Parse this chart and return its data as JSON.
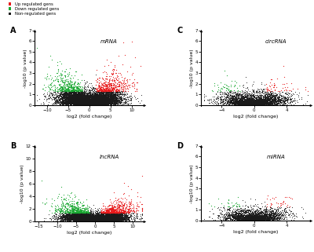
{
  "panels": [
    {
      "label": "A",
      "title": "mRNA",
      "xlim": [
        -13,
        13
      ],
      "ylim": [
        -0.1,
        7
      ],
      "xticks": [
        -10,
        -5,
        0,
        5,
        10
      ],
      "yticks": [
        0,
        1,
        2,
        3,
        4,
        5,
        6,
        7
      ],
      "n_total": 12000,
      "x_std": 3.5,
      "x_thresh": 1.5,
      "y_thresh": 1.3,
      "y_max": 7.0,
      "seed": 42
    },
    {
      "label": "C",
      "title": "circRNA",
      "xlim": [
        -6.5,
        7
      ],
      "ylim": [
        -0.1,
        7
      ],
      "xticks": [
        -4,
        0,
        4
      ],
      "yticks": [
        0,
        1,
        2,
        3,
        4,
        5,
        6,
        7
      ],
      "n_total": 4000,
      "x_std": 2.0,
      "x_thresh": 1.5,
      "y_thresh": 1.3,
      "y_max": 7.0,
      "seed": 43
    },
    {
      "label": "B",
      "title": "lncRNA",
      "xlim": [
        -16,
        13
      ],
      "ylim": [
        -0.1,
        12
      ],
      "xticks": [
        -15,
        -10,
        -5,
        0,
        5,
        10
      ],
      "yticks": [
        0,
        2,
        4,
        6,
        8,
        10,
        12
      ],
      "n_total": 12000,
      "x_std": 4.0,
      "x_thresh": 1.5,
      "y_thresh": 1.3,
      "y_max": 12.0,
      "seed": 44
    },
    {
      "label": "D",
      "title": "miRNA",
      "xlim": [
        -6.5,
        7
      ],
      "ylim": [
        -0.1,
        7
      ],
      "xticks": [
        -4,
        0,
        4
      ],
      "yticks": [
        0,
        1,
        2,
        3,
        4,
        5,
        6,
        7
      ],
      "n_total": 3000,
      "x_std": 1.8,
      "x_thresh": 1.5,
      "y_thresh": 1.3,
      "y_max": 7.0,
      "seed": 45
    }
  ],
  "up_color": "#e8191a",
  "down_color": "#19a831",
  "non_color": "#1a1a1a",
  "background_color": "#ffffff",
  "legend_up": "Up regulated gens",
  "legend_down": "Down regulated gens",
  "legend_non": "Non-regulated gens",
  "xlabel": "log2 (fold change)",
  "ylabel": "-log10 (p value)"
}
